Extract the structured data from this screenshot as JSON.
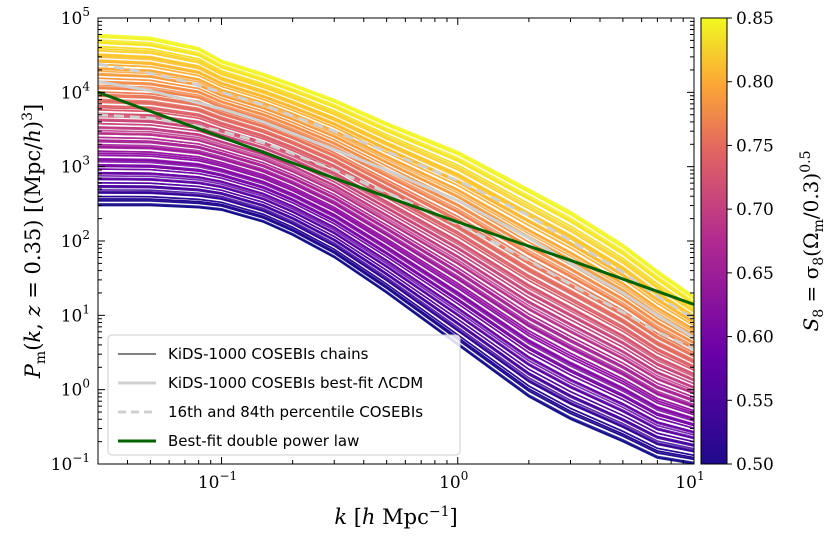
{
  "chart_data": {
    "type": "line",
    "title": "",
    "xlabel": "k [h Mpc^-1]",
    "ylabel": "P_m(k, z = 0.35) [(Mpc/h)^3]",
    "xscale": "log",
    "yscale": "log",
    "xlim": [
      0.03,
      10
    ],
    "ylim": [
      0.1,
      100000
    ],
    "x_ticks": [
      {
        "value": 0.1,
        "mantissa": "10",
        "exp": "−1"
      },
      {
        "value": 1,
        "mantissa": "10",
        "exp": "0"
      },
      {
        "value": 10,
        "mantissa": "10",
        "exp": "1"
      }
    ],
    "y_ticks": [
      {
        "value": 0.1,
        "mantissa": "10",
        "exp": "−1"
      },
      {
        "value": 1,
        "mantissa": "10",
        "exp": "0"
      },
      {
        "value": 10,
        "mantissa": "10",
        "exp": "1"
      },
      {
        "value": 100,
        "mantissa": "10",
        "exp": "2"
      },
      {
        "value": 1000,
        "mantissa": "10",
        "exp": "3"
      },
      {
        "value": 10000,
        "mantissa": "10",
        "exp": "4"
      },
      {
        "value": 100000,
        "mantissa": "10",
        "exp": "5"
      }
    ],
    "chains": {
      "legend_label": "KiDS-1000 COSEBIs chains",
      "color_by": "S8",
      "k_points": [
        0.03,
        0.05,
        0.08,
        0.1,
        0.15,
        0.2,
        0.3,
        0.5,
        1,
        2,
        3,
        5,
        7,
        10
      ],
      "low_S8_envelope": [
        300,
        300,
        280,
        260,
        180,
        120,
        60,
        20,
        4,
        0.8,
        0.4,
        0.2,
        0.12,
        0.1
      ],
      "high_S8_envelope": [
        60000,
        55000,
        40000,
        27000,
        18000,
        13000,
        8000,
        3900,
        1600,
        500,
        250,
        90,
        40,
        18
      ]
    },
    "series": [
      {
        "name": "KiDS-1000 COSEBIs best-fit ΛCDM",
        "style": "solid",
        "color": "#d0d0d0",
        "x": [
          0.03,
          0.05,
          0.07,
          0.1,
          0.15,
          0.2,
          0.3,
          0.5,
          1,
          2,
          3,
          5,
          7,
          10
        ],
        "y": [
          14000,
          10500,
          8000,
          6000,
          4000,
          2800,
          1700,
          900,
          350,
          110,
          50,
          20,
          10,
          5
        ]
      },
      {
        "name": "16th and 84th percentile COSEBIs",
        "style": "dashed",
        "color": "#d0d0d0",
        "x": [
          0.03,
          0.05,
          0.07,
          0.1,
          0.15,
          0.2,
          0.3,
          0.5,
          1,
          2,
          3,
          5,
          7,
          10
        ],
        "y": [
          24000,
          18000,
          14000,
          10000,
          6800,
          4800,
          3000,
          1600,
          650,
          220,
          100,
          38,
          18,
          9
        ]
      },
      {
        "name": "",
        "style": "dashed",
        "color": "#d0d0d0",
        "x": [
          0.03,
          0.05,
          0.07,
          0.1,
          0.15,
          0.2,
          0.3,
          0.5,
          1,
          2,
          3,
          5,
          7,
          10
        ],
        "y": [
          5000,
          4500,
          3800,
          3000,
          2100,
          1500,
          900,
          450,
          170,
          55,
          26,
          11,
          6,
          3.5
        ]
      },
      {
        "name": "Best-fit double power law",
        "style": "solid",
        "color": "#006400",
        "x": [
          0.03,
          0.1,
          0.3,
          1,
          3,
          10
        ],
        "y": [
          10000,
          2500,
          700,
          180,
          55,
          14
        ]
      }
    ],
    "legend": {
      "position": "lower-left",
      "entries": [
        {
          "label": "KiDS-1000 COSEBIs chains",
          "color": "#000000",
          "style": "solid-thin"
        },
        {
          "label": "KiDS-1000 COSEBIs best-fit ΛCDM",
          "color": "#d0d0d0",
          "style": "solid"
        },
        {
          "label": "16th and 84th percentile COSEBIs",
          "color": "#d0d0d0",
          "style": "dashed"
        },
        {
          "label": "Best-fit double power law",
          "color": "#006400",
          "style": "solid"
        }
      ]
    },
    "colorbar": {
      "label": "S8 = σ8(Ωm/0.3)^0.5",
      "range": [
        0.5,
        0.85
      ],
      "ticks": [
        "0.50",
        "0.55",
        "0.60",
        "0.65",
        "0.70",
        "0.75",
        "0.80",
        "0.85"
      ],
      "colormap": "plasma"
    }
  }
}
